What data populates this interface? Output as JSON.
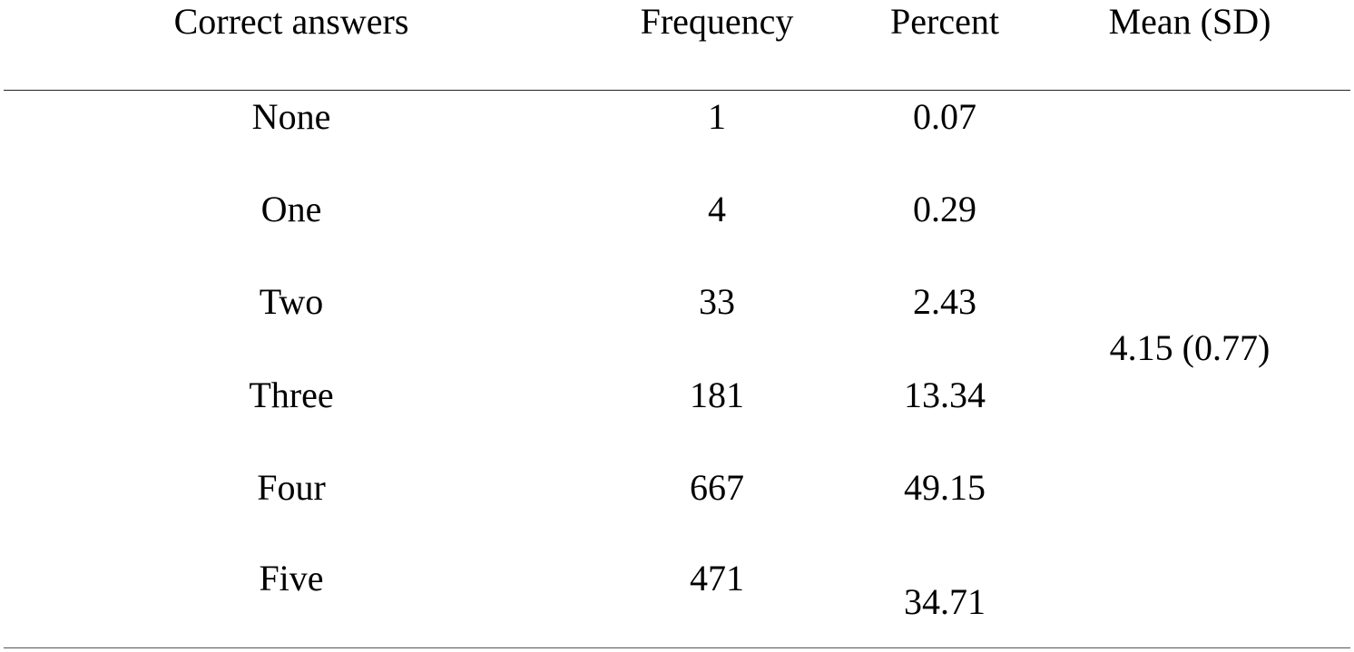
{
  "table": {
    "headers": {
      "correct_answers": "Correct answers",
      "frequency": "Frequency",
      "percent": "Percent",
      "mean_sd": "Mean (SD)"
    },
    "rows": [
      {
        "label": "None",
        "frequency": "1",
        "percent": "0.07"
      },
      {
        "label": "One",
        "frequency": "4",
        "percent": "0.29"
      },
      {
        "label": "Two",
        "frequency": "33",
        "percent": "2.43"
      },
      {
        "label": "Three",
        "frequency": "181",
        "percent": "13.34"
      },
      {
        "label": "Four",
        "frequency": "667",
        "percent": "49.15"
      },
      {
        "label": "Five",
        "frequency": "471",
        "percent": "34.71"
      }
    ],
    "mean_sd_value": "4.15 (0.77)"
  }
}
